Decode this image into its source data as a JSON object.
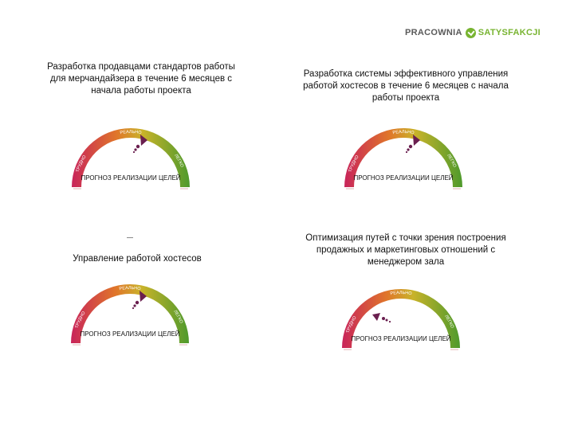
{
  "logo": {
    "part1": "PRACOWNIA",
    "part2": "SATYSFAKCJI"
  },
  "panels": [
    {
      "title": "Разработка продавцами стандартов работы для мерчандайзера в течение 6 месяцев с начала работы проекта",
      "arc_labels": {
        "left": "ТРУДНО",
        "top": "РЕАЛЬНО",
        "right": "ЛЕГКО"
      },
      "gauge_label": "ПРОГНОЗ РЕАЛИЗАЦИИ ЦЕЛЕЙ"
    },
    {
      "title": "Разработка системы эффективного управления работой хостесов в течение 6 месяцев с начала работы проекта",
      "arc_labels": {
        "left": "ТРУДНО",
        "top": "РЕАЛЬНО",
        "right": "ЛЕГКО"
      },
      "gauge_label": "ПРОГНОЗ РЕАЛИЗАЦИИ ЦЕЛЕЙ"
    },
    {
      "title": "Управление работой хостесов",
      "arc_labels": {
        "left": "ТРУДНО",
        "top": "РЕАЛЬНО",
        "right": "ЛЕГКО"
      },
      "gauge_label": "ПРОГНОЗ РЕАЛИЗАЦИИ ЦЕЛЕЙ"
    },
    {
      "title": "Оптимизация путей с точки зрения построения продажных и маркетинговых отношений с менеджером зала",
      "arc_labels": {
        "left": "ТРУДНО",
        "top": "РЕАЛЬНО",
        "right": "ЛЕГКО"
      },
      "gauge_label": "ПРОГНОЗ РЕАЛИЗАЦИИ ЦЕЛЕЙ"
    }
  ],
  "colors": {
    "red": "#c8245a",
    "orange": "#e0762a",
    "yellow": "#c9b32a",
    "green": "#4e9a2c",
    "needle": "#6a1f4f"
  }
}
